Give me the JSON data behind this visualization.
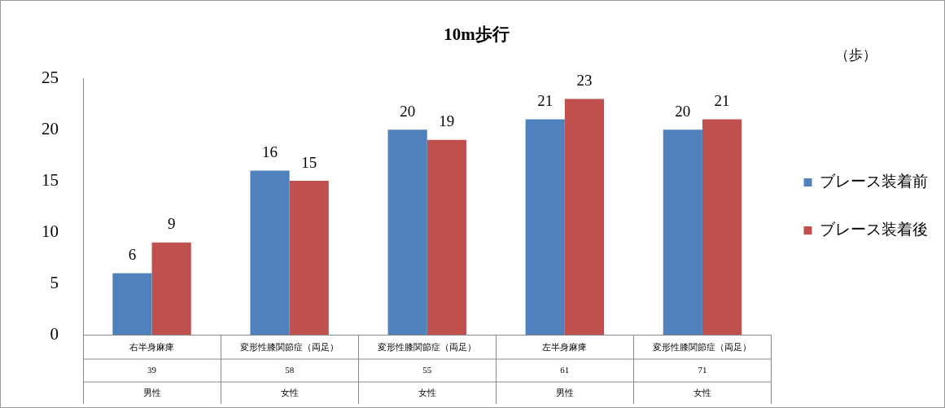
{
  "chart_data": {
    "type": "bar",
    "title": "10m歩行",
    "annotations": [
      "（歩）"
    ],
    "categories": [
      "右半身麻痺\n39\n男性",
      "変形性膝関節症（両足）\n58\n女性",
      "変形性膝関節症（両足）\n55\n女性",
      "左半身麻痺\n61\n男性",
      "変形性膝関節症（両足）\n71\n女性"
    ],
    "series": [
      {
        "name": "ブレース装着前",
        "color": "#4f81bd",
        "values": [
          6,
          16,
          20,
          21,
          20
        ]
      },
      {
        "name": "ブレース装着後",
        "color": "#c0504d",
        "values": [
          9,
          15,
          19,
          23,
          21
        ]
      }
    ],
    "ylim": [
      0,
      25
    ],
    "yticks": [
      0,
      5,
      10,
      15,
      20,
      25
    ],
    "grid": false,
    "legend": "right",
    "data_labels": true
  }
}
